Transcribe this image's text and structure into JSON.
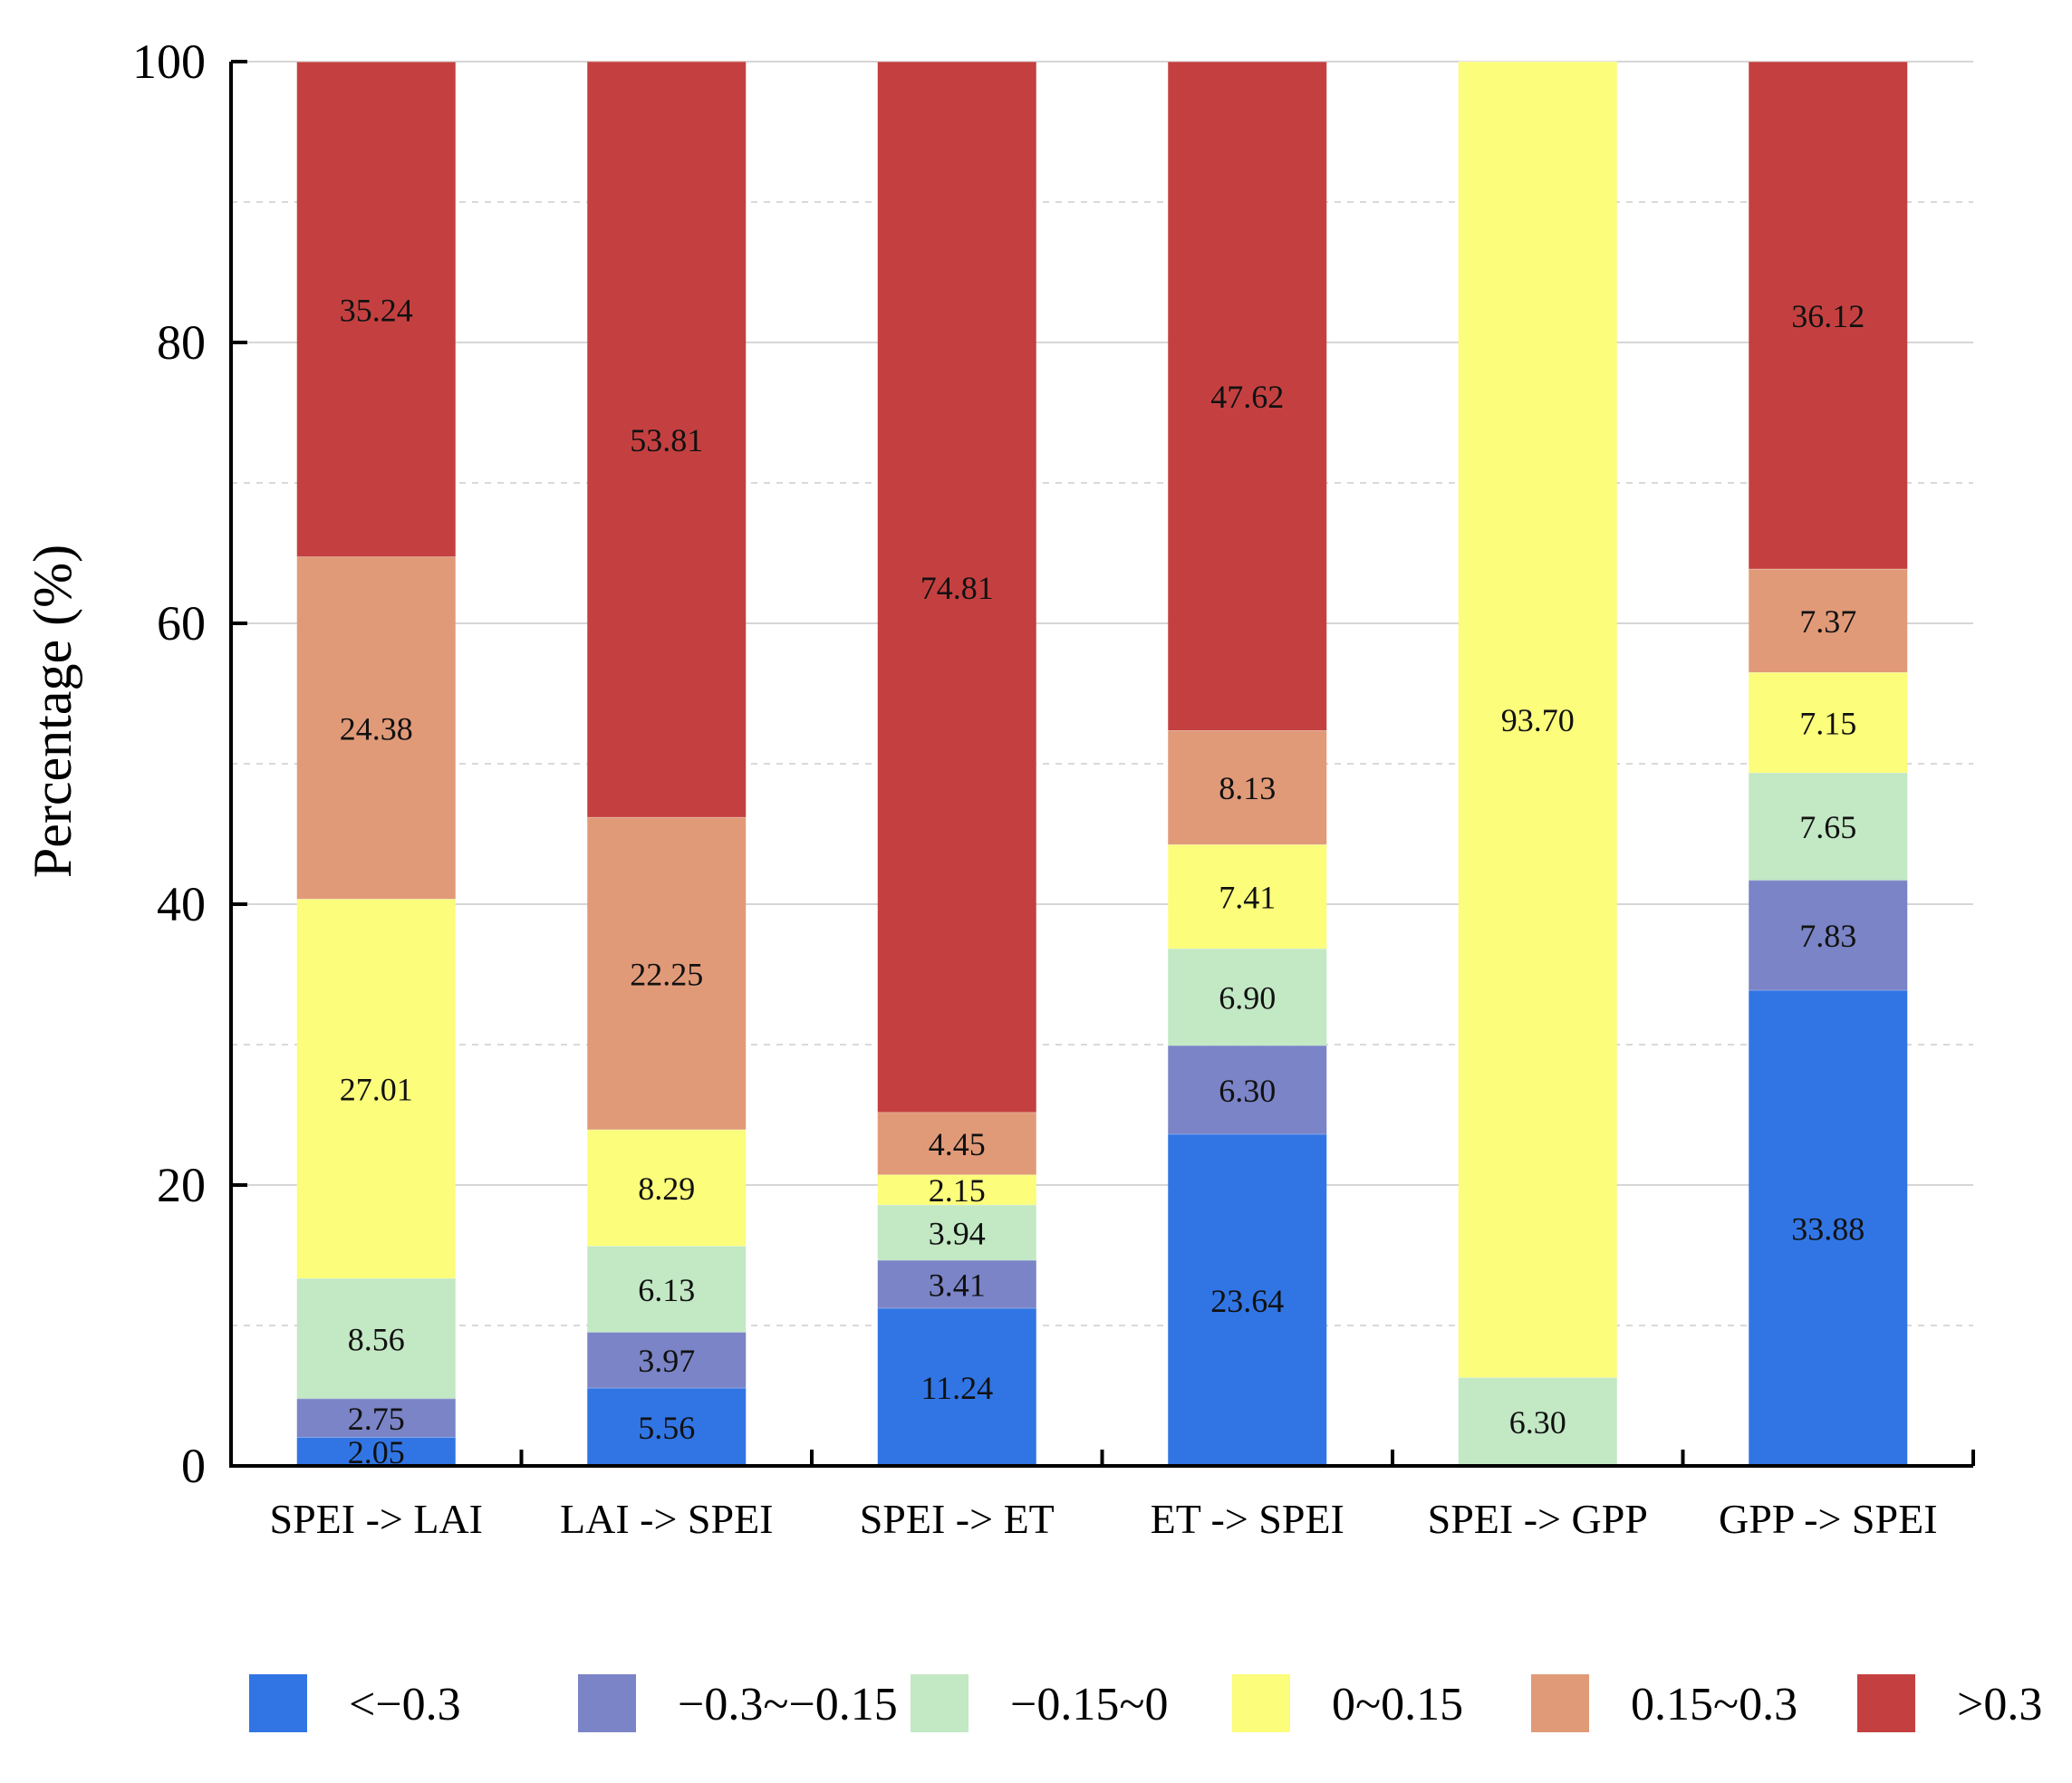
{
  "chart_data": {
    "type": "bar",
    "stacked": true,
    "title": "",
    "xlabel": "",
    "ylabel": "Percentage (%)",
    "ylim": [
      0,
      100
    ],
    "yticks": [
      0,
      20,
      40,
      60,
      80,
      100
    ],
    "grid": true,
    "legend_position": "bottom",
    "categories": [
      "SPEI -> LAI",
      "LAI -> SPEI",
      "SPEI -> ET",
      "ET -> SPEI",
      "SPEI -> GPP",
      "GPP -> SPEI"
    ],
    "series": [
      {
        "name": "<−0.3",
        "color": "#3175e4",
        "values": [
          2.05,
          5.56,
          11.24,
          23.64,
          0,
          33.88
        ],
        "labels": [
          "2.05",
          "5.56",
          "11.24",
          "23.64",
          "",
          "33.88"
        ]
      },
      {
        "name": "−0.3~−0.15",
        "color": "#7a84c6",
        "values": [
          2.75,
          3.97,
          3.41,
          6.3,
          0,
          7.83
        ],
        "labels": [
          "2.75",
          "3.97",
          "3.41",
          "6.30",
          "",
          "7.83"
        ]
      },
      {
        "name": "−0.15~0",
        "color": "#c2e8c4",
        "values": [
          8.56,
          6.13,
          3.94,
          6.9,
          6.3,
          7.65
        ],
        "labels": [
          "8.56",
          "6.13",
          "3.94",
          "6.90",
          "6.30",
          "7.65"
        ]
      },
      {
        "name": "0~0.15",
        "color": "#fbfd7b",
        "values": [
          27.01,
          8.29,
          2.15,
          7.41,
          93.7,
          7.15
        ],
        "labels": [
          "27.01",
          "8.29",
          "2.15",
          "7.41",
          "93.70",
          "7.15"
        ]
      },
      {
        "name": "0.15~0.3",
        "color": "#e19a78",
        "values": [
          24.38,
          22.25,
          4.45,
          8.13,
          0,
          7.37
        ],
        "labels": [
          "24.38",
          "22.25",
          "4.45",
          "8.13",
          "",
          "7.37"
        ]
      },
      {
        "name": ">0.3",
        "color": "#c44040",
        "values": [
          35.24,
          53.81,
          74.81,
          47.62,
          0,
          36.12
        ],
        "labels": [
          "35.24",
          "53.81",
          "74.81",
          "47.62",
          "",
          "36.12"
        ]
      }
    ]
  }
}
